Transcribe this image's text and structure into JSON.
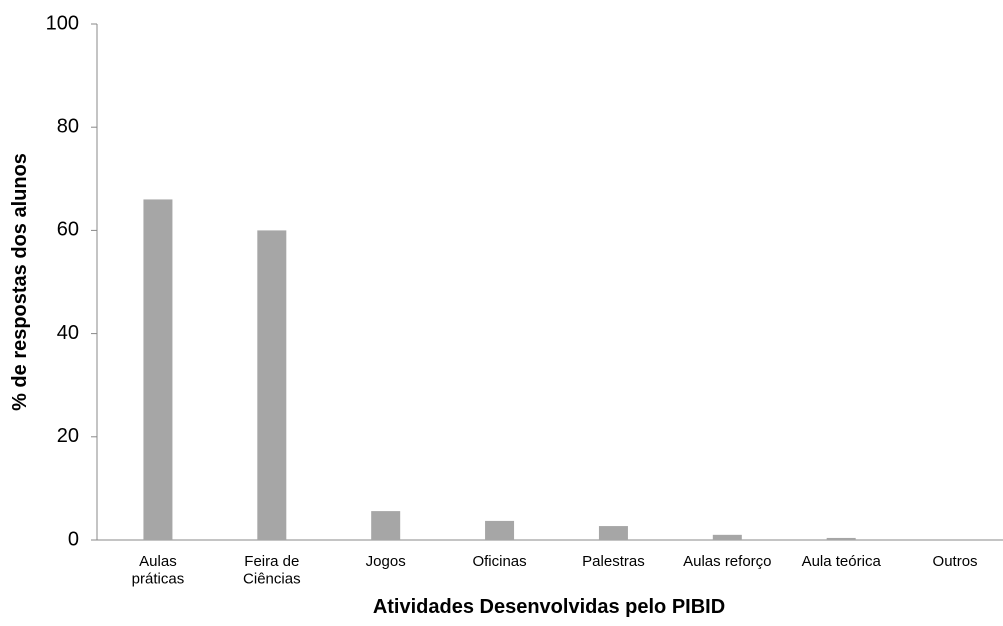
{
  "chart_data": {
    "type": "bar",
    "x_label": "Atividades Desenvolvidas pelo PIBID",
    "y_label": "% de respostas dos alunos",
    "categories": [
      "Aulas\npráticas",
      "Feira de\nCiências",
      "Jogos",
      "Oficinas",
      "Palestras",
      "Aulas reforço",
      "Aula teórica",
      "Outros"
    ],
    "values": [
      66,
      60,
      5.6,
      3.7,
      2.7,
      1,
      0.4,
      0
    ],
    "color": "#a6a6a6",
    "ylim": [
      0,
      100
    ],
    "yticks": [
      0,
      20,
      40,
      60,
      80,
      100
    ],
    "grid": false
  }
}
